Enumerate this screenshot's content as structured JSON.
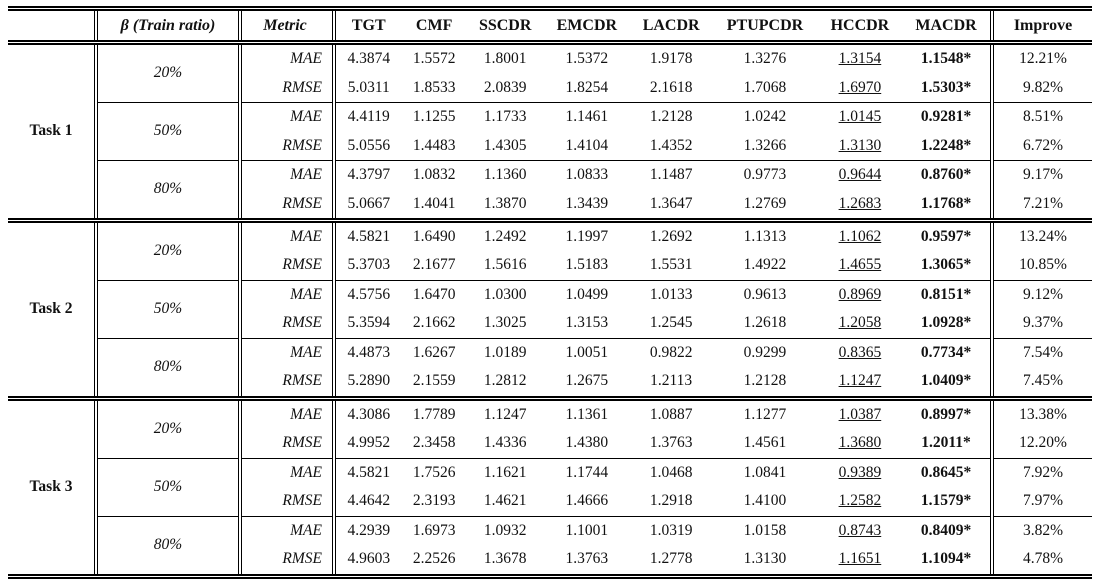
{
  "table": {
    "header": {
      "task_label": "",
      "beta_label": "β (Train ratio)",
      "metric_label": "Metric",
      "methods": [
        "TGT",
        "CMF",
        "SSCDR",
        "EMCDR",
        "LACDR",
        "PTUPCDR",
        "HCCDR",
        "MACDR"
      ],
      "improve_label": "Improve"
    },
    "underlined_method": "HCCDR",
    "bold_method": "MACDR",
    "tasks": [
      {
        "name": "Task 1",
        "groups": [
          {
            "ratio": "20%",
            "rows": [
              {
                "metric": "MAE",
                "values": [
                  "4.3874",
                  "1.5572",
                  "1.8001",
                  "1.5372",
                  "1.9178",
                  "1.3276",
                  "1.3154",
                  "1.1548*"
                ],
                "improve": "12.21%"
              },
              {
                "metric": "RMSE",
                "values": [
                  "5.0311",
                  "1.8533",
                  "2.0839",
                  "1.8254",
                  "2.1618",
                  "1.7068",
                  "1.6970",
                  "1.5303*"
                ],
                "improve": "9.82%"
              }
            ]
          },
          {
            "ratio": "50%",
            "rows": [
              {
                "metric": "MAE",
                "values": [
                  "4.4119",
                  "1.1255",
                  "1.1733",
                  "1.1461",
                  "1.2128",
                  "1.0242",
                  "1.0145",
                  "0.9281*"
                ],
                "improve": "8.51%"
              },
              {
                "metric": "RMSE",
                "values": [
                  "5.0556",
                  "1.4483",
                  "1.4305",
                  "1.4104",
                  "1.4352",
                  "1.3266",
                  "1.3130",
                  "1.2248*"
                ],
                "improve": "6.72%"
              }
            ]
          },
          {
            "ratio": "80%",
            "rows": [
              {
                "metric": "MAE",
                "values": [
                  "4.3797",
                  "1.0832",
                  "1.1360",
                  "1.0833",
                  "1.1487",
                  "0.9773",
                  "0.9644",
                  "0.8760*"
                ],
                "improve": "9.17%"
              },
              {
                "metric": "RMSE",
                "values": [
                  "5.0667",
                  "1.4041",
                  "1.3870",
                  "1.3439",
                  "1.3647",
                  "1.2769",
                  "1.2683",
                  "1.1768*"
                ],
                "improve": "7.21%"
              }
            ]
          }
        ]
      },
      {
        "name": "Task 2",
        "groups": [
          {
            "ratio": "20%",
            "rows": [
              {
                "metric": "MAE",
                "values": [
                  "4.5821",
                  "1.6490",
                  "1.2492",
                  "1.1997",
                  "1.2692",
                  "1.1313",
                  "1.1062",
                  "0.9597*"
                ],
                "improve": "13.24%"
              },
              {
                "metric": "RMSE",
                "values": [
                  "5.3703",
                  "2.1677",
                  "1.5616",
                  "1.5183",
                  "1.5531",
                  "1.4922",
                  "1.4655",
                  "1.3065*"
                ],
                "improve": "10.85%"
              }
            ]
          },
          {
            "ratio": "50%",
            "rows": [
              {
                "metric": "MAE",
                "values": [
                  "4.5756",
                  "1.6470",
                  "1.0300",
                  "1.0499",
                  "1.0133",
                  "0.9613",
                  "0.8969",
                  "0.8151*"
                ],
                "improve": "9.12%"
              },
              {
                "metric": "RMSE",
                "values": [
                  "5.3594",
                  "2.1662",
                  "1.3025",
                  "1.3153",
                  "1.2545",
                  "1.2618",
                  "1.2058",
                  "1.0928*"
                ],
                "improve": "9.37%"
              }
            ]
          },
          {
            "ratio": "80%",
            "rows": [
              {
                "metric": "MAE",
                "values": [
                  "4.4873",
                  "1.6267",
                  "1.0189",
                  "1.0051",
                  "0.9822",
                  "0.9299",
                  "0.8365",
                  "0.7734*"
                ],
                "improve": "7.54%"
              },
              {
                "metric": "RMSE",
                "values": [
                  "5.2890",
                  "2.1559",
                  "1.2812",
                  "1.2675",
                  "1.2113",
                  "1.2128",
                  "1.1247",
                  "1.0409*"
                ],
                "improve": "7.45%"
              }
            ]
          }
        ]
      },
      {
        "name": "Task 3",
        "groups": [
          {
            "ratio": "20%",
            "rows": [
              {
                "metric": "MAE",
                "values": [
                  "4.3086",
                  "1.7789",
                  "1.1247",
                  "1.1361",
                  "1.0887",
                  "1.1277",
                  "1.0387",
                  "0.8997*"
                ],
                "improve": "13.38%"
              },
              {
                "metric": "RMSE",
                "values": [
                  "4.9952",
                  "2.3458",
                  "1.4336",
                  "1.4380",
                  "1.3763",
                  "1.4561",
                  "1.3680",
                  "1.2011*"
                ],
                "improve": "12.20%"
              }
            ]
          },
          {
            "ratio": "50%",
            "rows": [
              {
                "metric": "MAE",
                "values": [
                  "4.5821",
                  "1.7526",
                  "1.1621",
                  "1.1744",
                  "1.0468",
                  "1.0841",
                  "0.9389",
                  "0.8645*"
                ],
                "improve": "7.92%"
              },
              {
                "metric": "RMSE",
                "values": [
                  "4.4642",
                  "2.3193",
                  "1.4621",
                  "1.4666",
                  "1.2918",
                  "1.4100",
                  "1.2582",
                  "1.1579*"
                ],
                "improve": "7.97%"
              }
            ]
          },
          {
            "ratio": "80%",
            "rows": [
              {
                "metric": "MAE",
                "values": [
                  "4.2939",
                  "1.6973",
                  "1.0932",
                  "1.1001",
                  "1.0319",
                  "1.0158",
                  "0.8743",
                  "0.8409*"
                ],
                "improve": "3.82%"
              },
              {
                "metric": "RMSE",
                "values": [
                  "4.9603",
                  "2.2526",
                  "1.3678",
                  "1.3763",
                  "1.2778",
                  "1.3130",
                  "1.1651",
                  "1.1094*"
                ],
                "improve": "4.78%"
              }
            ]
          }
        ]
      }
    ]
  }
}
